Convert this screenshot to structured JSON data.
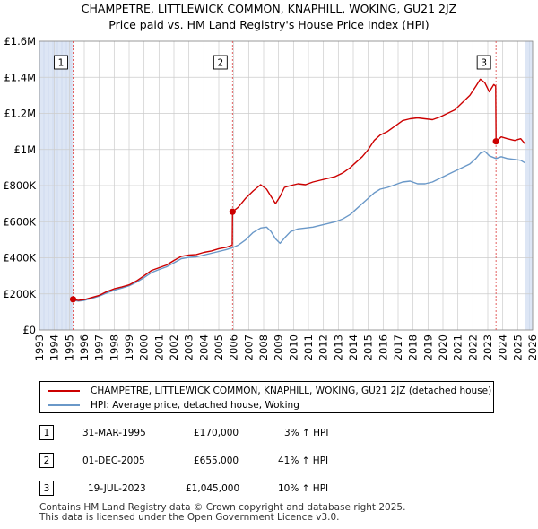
{
  "header": {
    "title_line1": "CHAMPETRE, LITTLEWICK COMMON, KNAPHILL, WOKING, GU21 2JZ",
    "title_line2": "Price paid vs. HM Land Registry's House Price Index (HPI)"
  },
  "colors": {
    "property": "#cc0000",
    "hpi": "#6a98c8",
    "shade": "#dde6f5",
    "grid": "#cccccc",
    "marker_line": "#e05050"
  },
  "chart_data": {
    "type": "line",
    "title": "Price paid vs. HM Land Registry's House Price Index (HPI)",
    "xlabel": "",
    "ylabel": "",
    "xlim": [
      1993,
      2026
    ],
    "ylim": [
      0,
      1600000
    ],
    "x_ticks": [
      "1993",
      "1994",
      "1995",
      "1996",
      "1997",
      "1998",
      "1999",
      "2000",
      "2001",
      "2002",
      "2003",
      "2004",
      "2005",
      "2006",
      "2007",
      "2008",
      "2009",
      "2010",
      "2011",
      "2012",
      "2013",
      "2014",
      "2015",
      "2016",
      "2017",
      "2018",
      "2019",
      "2020",
      "2021",
      "2022",
      "2023",
      "2024",
      "2025",
      "2026"
    ],
    "y_ticks": [
      {
        "value": 0,
        "label": "£0"
      },
      {
        "value": 200000,
        "label": "£200K"
      },
      {
        "value": 400000,
        "label": "£400K"
      },
      {
        "value": 600000,
        "label": "£600K"
      },
      {
        "value": 800000,
        "label": "£800K"
      },
      {
        "value": 1000000,
        "label": "£1M"
      },
      {
        "value": 1200000,
        "label": "£1.2M"
      },
      {
        "value": 1400000,
        "label": "£1.4M"
      },
      {
        "value": 1600000,
        "label": "£1.6M"
      }
    ],
    "shaded_ranges": [
      [
        1993,
        1995.25
      ],
      [
        2025.5,
        2026
      ]
    ],
    "series": [
      {
        "name": "CHAMPETRE, LITTLEWICK COMMON, KNAPHILL, WOKING, GU21 2JZ (detached house)",
        "x": [
          1995.25,
          1995.6,
          1996,
          1996.5,
          1997,
          1997.5,
          1998,
          1998.5,
          1999,
          1999.5,
          2000,
          2000.5,
          2001,
          2001.5,
          2002,
          2002.5,
          2003,
          2003.5,
          2004,
          2004.5,
          2005,
          2005.5,
          2005.9,
          2005.92,
          2006.3,
          2006.8,
          2007.3,
          2007.8,
          2008.2,
          2008.5,
          2008.8,
          2009.1,
          2009.4,
          2009.8,
          2010.3,
          2010.8,
          2011.3,
          2011.8,
          2012.3,
          2012.8,
          2013.3,
          2013.8,
          2014.2,
          2014.6,
          2015,
          2015.4,
          2015.8,
          2016.3,
          2016.8,
          2017.3,
          2017.8,
          2018.3,
          2018.8,
          2019.3,
          2019.8,
          2020.3,
          2020.8,
          2021.3,
          2021.8,
          2022.2,
          2022.5,
          2022.8,
          2023.1,
          2023.4,
          2023.53,
          2023.55,
          2023.9,
          2024.3,
          2024.8,
          2025.2,
          2025.5
        ],
        "y": [
          170000,
          164000,
          168000,
          180000,
          192000,
          212000,
          228000,
          238000,
          250000,
          272000,
          300000,
          330000,
          345000,
          360000,
          385000,
          408000,
          415000,
          418000,
          430000,
          438000,
          450000,
          458000,
          470000,
          655000,
          680000,
          730000,
          770000,
          805000,
          780000,
          740000,
          700000,
          740000,
          790000,
          800000,
          810000,
          805000,
          820000,
          830000,
          840000,
          850000,
          870000,
          900000,
          930000,
          960000,
          1000000,
          1050000,
          1080000,
          1100000,
          1130000,
          1160000,
          1170000,
          1175000,
          1170000,
          1165000,
          1180000,
          1200000,
          1220000,
          1260000,
          1300000,
          1350000,
          1390000,
          1370000,
          1320000,
          1360000,
          1350000,
          1045000,
          1070000,
          1060000,
          1050000,
          1060000,
          1030000
        ]
      },
      {
        "name": "HPI: Average price, detached house, Woking",
        "x": [
          1995.25,
          1995.6,
          1996,
          1996.5,
          1997,
          1997.5,
          1998,
          1998.5,
          1999,
          1999.5,
          2000,
          2000.5,
          2001,
          2001.5,
          2002,
          2002.5,
          2003,
          2003.5,
          2004,
          2004.5,
          2005,
          2005.5,
          2005.9,
          2006.3,
          2006.8,
          2007.3,
          2007.8,
          2008.2,
          2008.5,
          2008.8,
          2009.1,
          2009.4,
          2009.8,
          2010.3,
          2010.8,
          2011.3,
          2011.8,
          2012.3,
          2012.8,
          2013.3,
          2013.8,
          2014.2,
          2014.6,
          2015,
          2015.4,
          2015.8,
          2016.3,
          2016.8,
          2017.3,
          2017.8,
          2018.3,
          2018.8,
          2019.3,
          2019.8,
          2020.3,
          2020.8,
          2021.3,
          2021.8,
          2022.2,
          2022.5,
          2022.8,
          2023.1,
          2023.55,
          2023.9,
          2024.3,
          2024.8,
          2025.2,
          2025.5
        ],
        "y": [
          165000,
          160000,
          164000,
          175000,
          188000,
          205000,
          220000,
          232000,
          245000,
          265000,
          290000,
          318000,
          335000,
          350000,
          372000,
          395000,
          402000,
          405000,
          415000,
          425000,
          435000,
          445000,
          455000,
          470000,
          500000,
          540000,
          565000,
          570000,
          545000,
          505000,
          480000,
          510000,
          545000,
          560000,
          565000,
          570000,
          580000,
          590000,
          600000,
          615000,
          640000,
          670000,
          700000,
          730000,
          760000,
          780000,
          790000,
          805000,
          820000,
          825000,
          810000,
          810000,
          820000,
          840000,
          860000,
          880000,
          900000,
          920000,
          950000,
          980000,
          990000,
          965000,
          950000,
          960000,
          950000,
          945000,
          940000,
          925000
        ]
      }
    ],
    "markers": [
      {
        "label": "1",
        "x": 1995.25,
        "y": 170000
      },
      {
        "label": "2",
        "x": 2005.92,
        "y": 655000
      },
      {
        "label": "3",
        "x": 2023.55,
        "y": 1045000
      }
    ]
  },
  "legend": {
    "property_label": "CHAMPETRE, LITTLEWICK COMMON, KNAPHILL, WOKING, GU21 2JZ (detached house)",
    "hpi_label": "HPI: Average price, detached house, Woking"
  },
  "sales": [
    {
      "num": "1",
      "date": "31-MAR-1995",
      "price": "£170,000",
      "hpi": "3% ↑ HPI"
    },
    {
      "num": "2",
      "date": "01-DEC-2005",
      "price": "£655,000",
      "hpi": "41% ↑ HPI"
    },
    {
      "num": "3",
      "date": "19-JUL-2023",
      "price": "£1,045,000",
      "hpi": "10% ↑ HPI"
    }
  ],
  "footer": {
    "line1": "Contains HM Land Registry data © Crown copyright and database right 2025.",
    "line2": "This data is licensed under the Open Government Licence v3.0."
  }
}
